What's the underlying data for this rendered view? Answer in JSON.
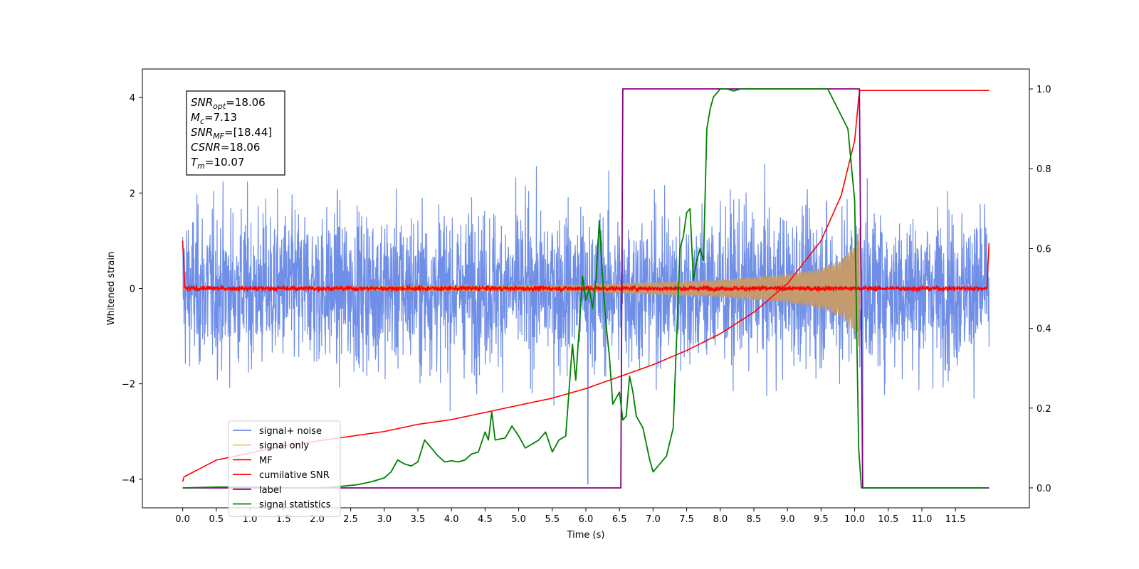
{
  "chart_data": {
    "type": "line",
    "title": "",
    "xlabel": "Time (s)",
    "ylabel": "Whitened strain",
    "xlim": [
      -0.6,
      12.6
    ],
    "ylim": [
      -4.6,
      4.6
    ],
    "y2lim": [
      -0.05,
      1.05
    ],
    "xticks": [
      0.0,
      0.5,
      1.0,
      1.5,
      2.0,
      2.5,
      3.0,
      3.5,
      4.0,
      4.5,
      5.0,
      5.5,
      6.0,
      6.5,
      7.0,
      7.5,
      8.0,
      8.5,
      9.0,
      9.5,
      10.0,
      10.5,
      11.0,
      11.5
    ],
    "xtick_labels": [
      "0.0",
      "0.5",
      "1.0",
      "1.5",
      "2.0",
      "2.5",
      "3.0",
      "3.5",
      "4.0",
      "4.5",
      "5.0",
      "5.5",
      "6.0",
      "6.5",
      "7.0",
      "7.5",
      "8.0",
      "8.5",
      "9.0",
      "9.5",
      "10.0",
      "10.5",
      "11.0",
      "11.5"
    ],
    "yticks": [
      -4,
      -2,
      0,
      2,
      4
    ],
    "ytick_labels": [
      "−4",
      "−2",
      "0",
      "2",
      "4"
    ],
    "y2ticks": [
      0.0,
      0.2,
      0.4,
      0.6,
      0.8,
      1.0
    ],
    "y2tick_labels": [
      "0.0",
      "0.2",
      "0.4",
      "0.6",
      "0.8",
      "1.0"
    ],
    "grid": false,
    "legend_position": "lower-left",
    "annotation_lines": [
      {
        "sym": "SNR",
        "sub": "opt",
        "val": "=18.06"
      },
      {
        "sym": "M",
        "sub": "c",
        "val": "=7.13"
      },
      {
        "sym": "SNR",
        "sub": "MF",
        "val": "=[18.44]"
      },
      {
        "sym": "CSNR",
        "sub": "",
        "val": "=18.06"
      },
      {
        "sym": "T",
        "sub": "m",
        "val": "=10.07"
      }
    ],
    "series": [
      {
        "name": "signal+ noise",
        "color": "#6f8ee8",
        "axis": "left",
        "kind": "noise",
        "amplitude": 3.5
      },
      {
        "name": "signal only",
        "color": "#f5c97a",
        "axis": "left",
        "kind": "chirp",
        "envelope": [
          [
            0.0,
            0.02
          ],
          [
            6.0,
            0.08
          ],
          [
            8.0,
            0.18
          ],
          [
            9.0,
            0.3
          ],
          [
            9.5,
            0.42
          ],
          [
            9.8,
            0.6
          ],
          [
            10.0,
            0.9
          ],
          [
            10.07,
            1.3
          ]
        ]
      },
      {
        "name": "MF",
        "color": "#ff0000",
        "axis": "left",
        "kind": "mf",
        "edge_values": [
          [
            0.0,
            1.0
          ],
          [
            12.0,
            0.95
          ]
        ]
      },
      {
        "name": "cumilative SNR",
        "color": "#ff0000",
        "axis": "left",
        "x": [
          0.0,
          0.02,
          0.5,
          1.0,
          1.5,
          2.0,
          2.5,
          3.0,
          3.5,
          4.0,
          4.5,
          5.0,
          5.5,
          6.0,
          6.5,
          7.0,
          7.5,
          8.0,
          8.5,
          9.0,
          9.5,
          9.8,
          10.0,
          10.07,
          12.0
        ],
        "y": [
          -4.05,
          -3.95,
          -3.6,
          -3.45,
          -3.3,
          -3.2,
          -3.1,
          -3.0,
          -2.85,
          -2.75,
          -2.6,
          -2.45,
          -2.3,
          -2.1,
          -1.85,
          -1.6,
          -1.3,
          -0.95,
          -0.5,
          0.1,
          1.0,
          1.95,
          3.1,
          4.15,
          4.15
        ]
      },
      {
        "name": "label",
        "color": "#800080",
        "axis": "right",
        "x": [
          0.0,
          6.52,
          6.55,
          10.07,
          10.12,
          12.0
        ],
        "y": [
          0.0,
          0.0,
          1.0,
          1.0,
          0.0,
          0.0
        ]
      },
      {
        "name": "signal statistics",
        "color": "#008000",
        "axis": "right",
        "x": [
          0.0,
          0.5,
          1.0,
          1.5,
          2.0,
          2.3,
          2.6,
          2.8,
          2.9,
          3.0,
          3.1,
          3.2,
          3.3,
          3.4,
          3.5,
          3.6,
          3.7,
          3.8,
          3.9,
          4.0,
          4.1,
          4.2,
          4.3,
          4.4,
          4.5,
          4.55,
          4.6,
          4.65,
          4.8,
          4.9,
          5.0,
          5.1,
          5.2,
          5.3,
          5.4,
          5.5,
          5.6,
          5.7,
          5.8,
          5.85,
          5.9,
          5.95,
          6.0,
          6.05,
          6.1,
          6.15,
          6.2,
          6.25,
          6.3,
          6.35,
          6.4,
          6.5,
          6.55,
          6.6,
          6.65,
          6.7,
          6.75,
          6.85,
          6.95,
          7.0,
          7.1,
          7.2,
          7.3,
          7.4,
          7.45,
          7.5,
          7.55,
          7.6,
          7.65,
          7.7,
          7.75,
          7.8,
          7.85,
          7.9,
          7.95,
          8.0,
          8.1,
          8.2,
          8.3,
          8.5,
          8.7,
          9.0,
          9.3,
          9.6,
          9.9,
          10.0,
          10.03,
          10.06,
          10.1,
          10.15,
          10.5,
          11.0,
          11.5,
          11.95
        ],
        "y": [
          0.0,
          0.002,
          0.002,
          0.0,
          0.0,
          0.003,
          0.008,
          0.015,
          0.02,
          0.025,
          0.04,
          0.07,
          0.06,
          0.055,
          0.065,
          0.12,
          0.1,
          0.08,
          0.065,
          0.068,
          0.065,
          0.07,
          0.085,
          0.09,
          0.14,
          0.12,
          0.19,
          0.12,
          0.125,
          0.155,
          0.13,
          0.1,
          0.11,
          0.12,
          0.14,
          0.09,
          0.12,
          0.13,
          0.36,
          0.27,
          0.4,
          0.53,
          0.47,
          0.5,
          0.45,
          0.52,
          0.67,
          0.52,
          0.41,
          0.33,
          0.21,
          0.24,
          0.17,
          0.18,
          0.28,
          0.24,
          0.18,
          0.15,
          0.07,
          0.04,
          0.06,
          0.08,
          0.15,
          0.6,
          0.63,
          0.69,
          0.7,
          0.52,
          0.57,
          0.6,
          0.57,
          0.9,
          0.95,
          0.98,
          0.99,
          1.0,
          1.0,
          0.995,
          1.0,
          1.0,
          1.0,
          1.0,
          1.0,
          1.0,
          0.9,
          0.72,
          0.4,
          0.1,
          0.0,
          0.0,
          0.0,
          0.0,
          0.0,
          0.0
        ]
      }
    ]
  }
}
